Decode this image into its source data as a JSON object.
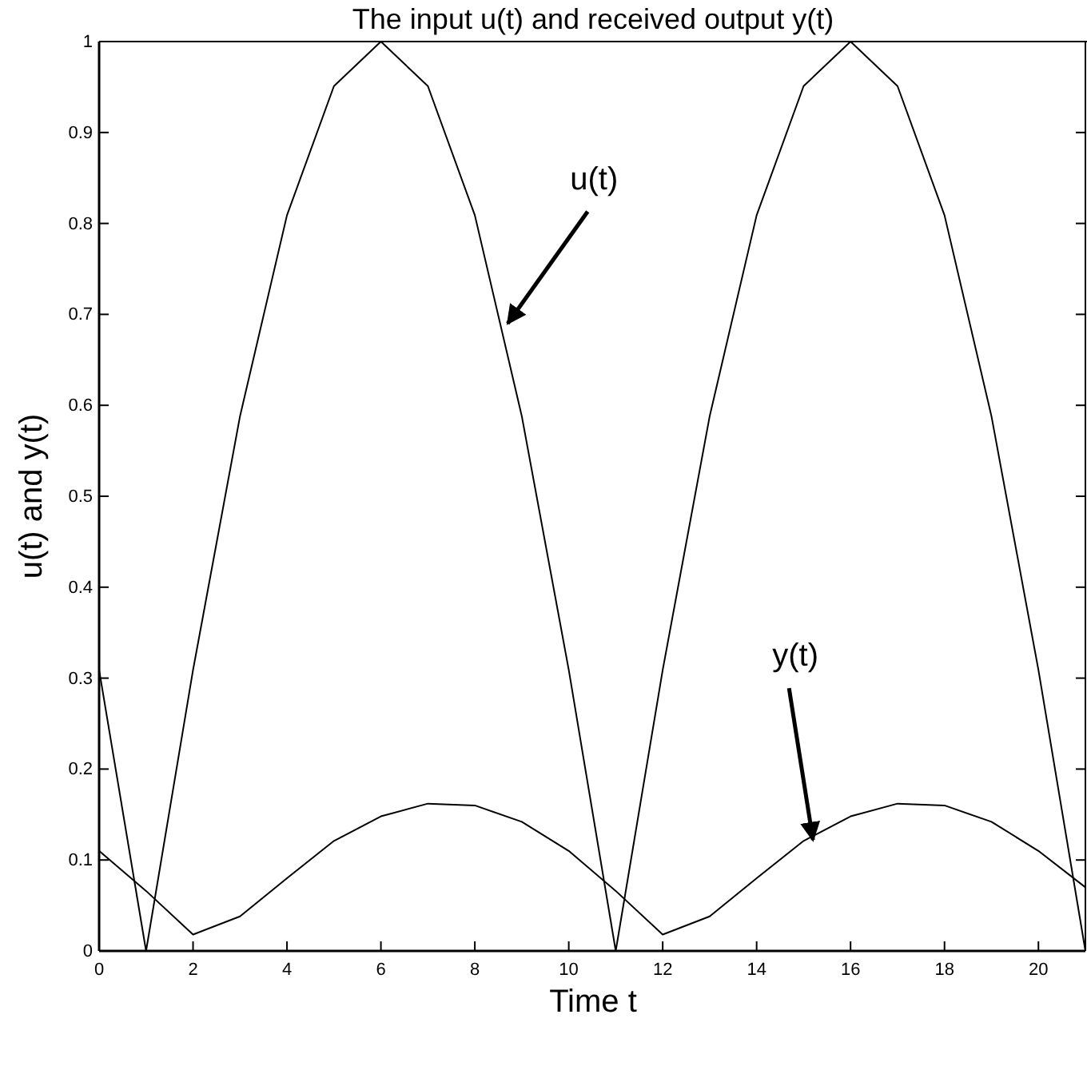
{
  "chart_data": {
    "type": "line",
    "title": "The input  u(t) and received output y(t)",
    "xlabel": "Time t",
    "ylabel": "u(t) and y(t)",
    "x": [
      0,
      1,
      2,
      3,
      4,
      5,
      6,
      7,
      8,
      9,
      10,
      11,
      12,
      13,
      14,
      15,
      16,
      17,
      18,
      19,
      20,
      21
    ],
    "series": [
      {
        "color": "#000000",
        "values": [
          0.309,
          0,
          0.309,
          0.588,
          0.809,
          0.951,
          1,
          0.951,
          0.809,
          0.588,
          0.309,
          0,
          0.309,
          0.588,
          0.809,
          0.951,
          1,
          0.951,
          0.809,
          0.588,
          0.309,
          0
        ]
      },
      {
        "color": "#000000",
        "values": [
          0.11,
          0.066,
          0.018,
          0.038,
          0.08,
          0.121,
          0.148,
          0.162,
          0.16,
          0.142,
          0.11,
          0.066,
          0.018,
          0.038,
          0.08,
          0.121,
          0.148,
          0.162,
          0.16,
          0.142,
          0.11,
          0.07
        ]
      }
    ],
    "annotations": [
      {
        "text": "u(t)",
        "x": 8.7,
        "y": 0.69
      },
      {
        "text": "y(t)",
        "x": 15.2,
        "y": 0.122
      }
    ],
    "xlim": [
      0,
      21
    ],
    "ylim": [
      0,
      1
    ],
    "xticks": [
      0,
      2,
      4,
      6,
      8,
      10,
      12,
      14,
      16,
      18,
      20
    ],
    "yticks": [
      0,
      0.1,
      0.2,
      0.3,
      0.4,
      0.5,
      0.6,
      0.7,
      0.8,
      0.9,
      1
    ],
    "grid": false,
    "marker": "none",
    "line_style": "solid"
  }
}
